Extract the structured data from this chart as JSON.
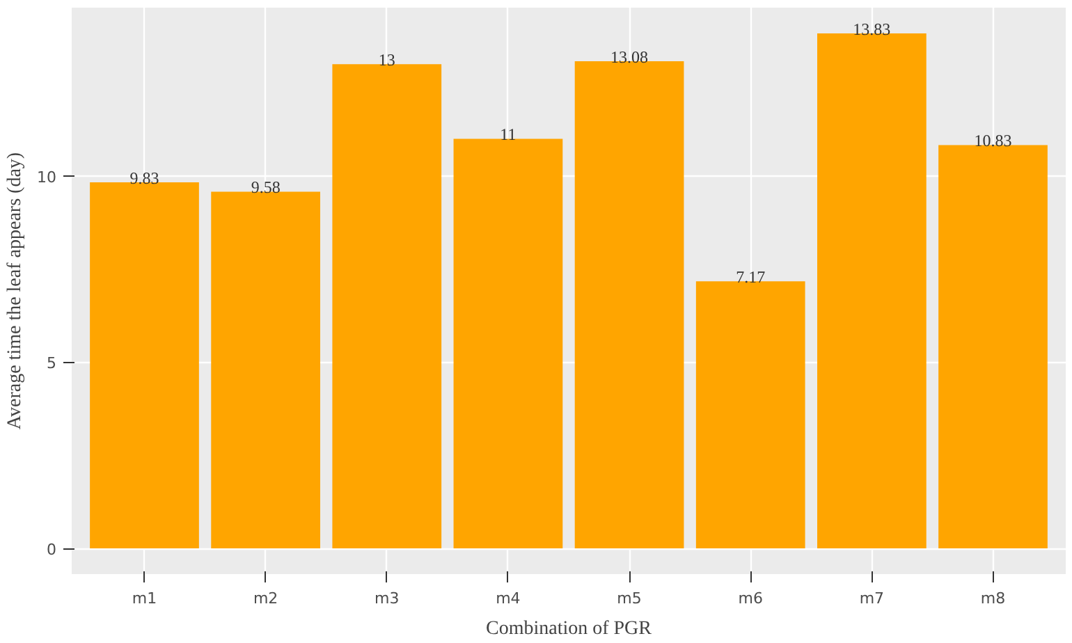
{
  "chart_data": {
    "type": "bar",
    "xlabel": "Combination of PGR",
    "ylabel": "Average time the leaf appears (day)",
    "categories": [
      "m1",
      "m2",
      "m3",
      "m4",
      "m5",
      "m6",
      "m7",
      "m8"
    ],
    "values": [
      9.83,
      9.58,
      13,
      11,
      13.08,
      7.17,
      13.83,
      10.83
    ],
    "value_labels": [
      "9.83",
      "9.58",
      "13",
      "11",
      "13.08",
      "7.17",
      "13.83",
      "10.83"
    ],
    "color": "#ffa500",
    "ylim": [
      -0.69,
      14.52
    ],
    "yticks": [
      0,
      5,
      10
    ],
    "grid": true
  }
}
